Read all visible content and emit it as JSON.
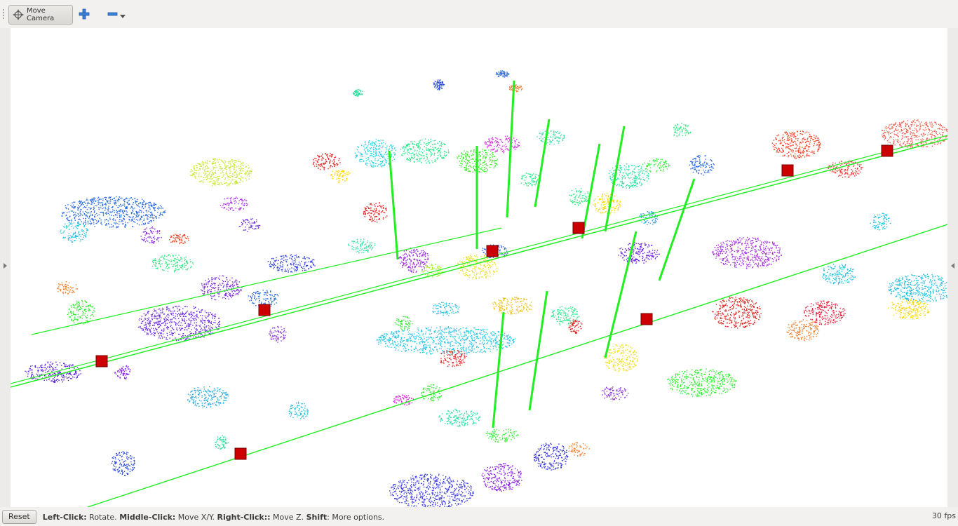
{
  "toolbar": {
    "move_camera_label": "Move Camera",
    "add_tool_icon": "plus-icon",
    "remove_tool_icon": "minus-icon",
    "dropdown_icon": "caret-down-icon"
  },
  "viewport": {
    "background": "#ffffff",
    "trajectory_color": "#22ee22",
    "pose_marker_color": "#cc0000"
  },
  "status": {
    "reset_label": "Reset",
    "help_1_key": "Left-Click:",
    "help_1_text": " Rotate. ",
    "help_2_key": "Middle-Click:",
    "help_2_text": " Move X/Y. ",
    "help_3_key": "Right-Click::",
    "help_3_text": " Move Z. ",
    "help_4_key": "Shift",
    "help_4_text": ": More options.",
    "fps": "30 fps"
  }
}
